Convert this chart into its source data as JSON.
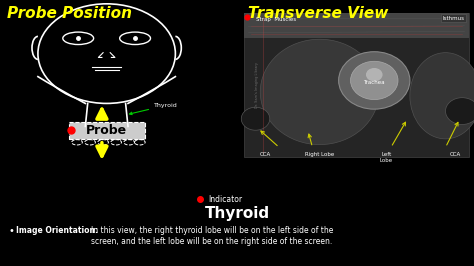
{
  "bg_color": "#000000",
  "left_title": "Probe Position",
  "right_title": "Transverse View",
  "title_color": "#ffff00",
  "center_title": "Thyroid",
  "center_title_color": "#ffffff",
  "bullet_label": "Image Orientation:",
  "bullet_text": "In this view, the right thyroid lobe will be on the left side of the\nscreen, and the left lobe will be on the right side of the screen.",
  "probe_label": "Probe",
  "thyroid_label": "Thyroid",
  "indicator_label": "Indicator",
  "us_labels": {
    "strap_muscles": "Strap  Muscles",
    "isthmus": "Isthmus",
    "trachea": "Trachea",
    "cca_left": "CCA",
    "cca_right": "CCA",
    "right_lobe": "Right Lobe",
    "left_lobe": "Left\nLobe"
  },
  "outline_color": "#ffffff",
  "arrow_color": "#ffff00",
  "probe_box_color": "#cccccc",
  "probe_text_color": "#000000",
  "red_dot_color": "#ff0000",
  "green_color": "#00cc00",
  "yellow_arrow_color": "#cccc00",
  "us_label_color": "#ffffff"
}
